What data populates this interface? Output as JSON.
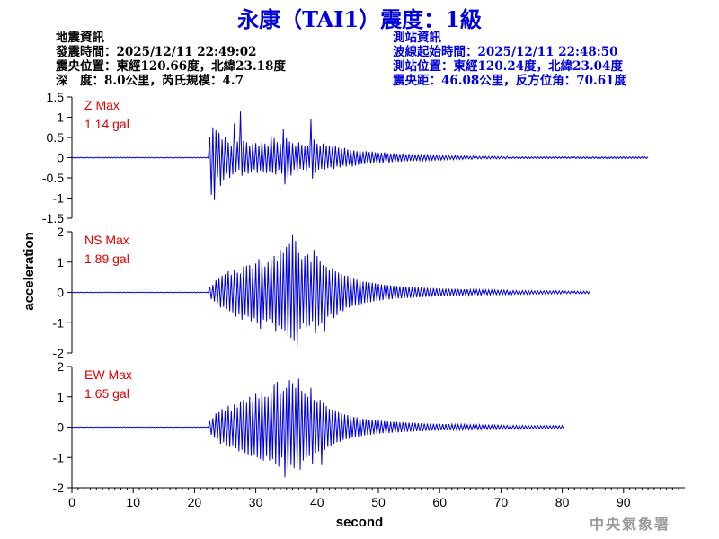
{
  "title": "永康（TAI1）震度：1級",
  "event_info": {
    "heading": "地震資訊",
    "time": "發震時間：2025/12/11 22:49:02",
    "epicenter": "震央位置：東經120.66度，北緯23.18度",
    "depth_magnitude": "深　度：8.0公里，芮氏規模：4.7"
  },
  "station_info": {
    "heading": "測站資訊",
    "wave_start": "波線起始時間：2025/12/11 22:48:50",
    "location": "測站位置：東經120.24度，北緯23.04度",
    "distance": "震央距：46.08公里，反方位角：70.61度"
  },
  "footer": "中央氣象署",
  "colors": {
    "title": "#0000dd",
    "trace": "#0000dd",
    "max_label": "#e00000",
    "axis": "#000000"
  },
  "chart_data": {
    "type": "line",
    "xlabel": "second",
    "ylabel": "acceleration",
    "xlim": [
      0,
      100
    ],
    "x_ticks": [
      0,
      10,
      20,
      30,
      40,
      50,
      60,
      70,
      80,
      90
    ],
    "grid": false,
    "sample_interval": 0.25,
    "panels": [
      {
        "name": "Z",
        "max_label": "Z Max",
        "max_value": "1.14 gal",
        "ylim": [
          -1.5,
          1.5
        ],
        "y_ticks": [
          1.5,
          1,
          0.5,
          0,
          -0.5,
          -1,
          -1.5
        ],
        "y_tick_labels": [
          "1.5",
          "1",
          "0.5",
          "0",
          "-0.5",
          "-1",
          "-1.5"
        ],
        "values": [
          0.01,
          -0.01,
          0.01,
          -0.01,
          0.01,
          -0.01,
          0.01,
          -0.01,
          0.01,
          -0.01,
          0.01,
          -0.01,
          0.01,
          -0.01,
          0.01,
          -0.01,
          0.01,
          -0.01,
          0.01,
          -0.01,
          0.01,
          -0.01,
          0.01,
          -0.01,
          0.01,
          -0.01,
          0.01,
          -0.01,
          0.01,
          -0.01,
          0.01,
          -0.01,
          0.01,
          -0.01,
          0.01,
          -0.01,
          0.01,
          -0.01,
          0.01,
          -0.01,
          0.01,
          -0.01,
          0.01,
          -0.01,
          0.01,
          -0.01,
          0.01,
          -0.01,
          0.01,
          -0.01,
          0.01,
          -0.01,
          0.01,
          -0.01,
          0.01,
          -0.01,
          0.01,
          -0.01,
          0.01,
          -0.01,
          0.01,
          -0.01,
          0.01,
          -0.01,
          0.01,
          -0.01,
          0.01,
          -0.01,
          0.01,
          -0.01,
          0.01,
          -0.01,
          0.01,
          -0.01,
          0.01,
          -0.01,
          0.01,
          -0.01,
          0.01,
          -0.01,
          0.01,
          -0.01,
          0.01,
          -0.01,
          0.01,
          -0.01,
          0.01,
          -0.01,
          0.01,
          -0.01,
          0.52,
          -0.92,
          0.75,
          -1.05,
          0.68,
          -0.48,
          0.62,
          -0.7,
          0.45,
          -0.55,
          0.5,
          -0.4,
          0.38,
          -0.5,
          0.3,
          -0.42,
          0.85,
          -0.35,
          0.4,
          -0.3,
          1.14,
          -0.45,
          0.42,
          -0.36,
          0.38,
          -0.4,
          0.3,
          -0.35,
          0.35,
          -0.3,
          0.36,
          -0.38,
          0.3,
          -0.32,
          0.4,
          -0.35,
          0.35,
          -0.38,
          0.3,
          -0.34,
          0.55,
          -0.38,
          0.48,
          -0.42,
          0.38,
          -0.3,
          0.35,
          -0.4,
          0.7,
          -0.66,
          0.48,
          -0.5,
          0.4,
          -0.44,
          0.36,
          -0.3,
          0.3,
          -0.35,
          0.38,
          -0.28,
          0.32,
          -0.3,
          0.28,
          -0.32,
          0.3,
          -0.25,
          0.95,
          -0.52,
          0.45,
          -0.38,
          0.35,
          -0.3,
          0.3,
          -0.28,
          0.35,
          -0.3,
          0.3,
          -0.26,
          0.28,
          -0.24,
          0.26,
          -0.28,
          0.3,
          -0.22,
          0.25,
          -0.24,
          0.22,
          -0.2,
          0.24,
          -0.22,
          0.2,
          -0.18,
          0.2,
          -0.22,
          0.18,
          -0.2,
          0.16,
          -0.18,
          0.18,
          -0.16,
          0.15,
          -0.16,
          0.16,
          -0.14,
          0.14,
          -0.15,
          0.15,
          -0.13,
          0.13,
          -0.14,
          0.12,
          -0.12,
          0.12,
          -0.13,
          0.13,
          -0.11,
          0.11,
          -0.12,
          0.1,
          -0.11,
          0.11,
          -0.1,
          0.1,
          -0.1,
          0.09,
          -0.1,
          0.1,
          -0.09,
          0.08,
          -0.09,
          0.09,
          -0.08,
          0.08,
          -0.08,
          0.07,
          -0.08,
          0.08,
          -0.07,
          0.07,
          -0.07,
          0.06,
          -0.07,
          0.07,
          -0.06,
          0.06,
          -0.06,
          0.06,
          -0.06,
          0.06,
          -0.05,
          0.05,
          -0.06,
          0.05,
          -0.05,
          0.05,
          -0.05,
          0.05,
          -0.04,
          0.04,
          -0.05,
          0.05,
          -0.04,
          0.04,
          -0.04,
          0.04,
          -0.04,
          0.04,
          -0.04,
          0.04,
          -0.03,
          0.03,
          -0.04,
          0.04,
          -0.03,
          0.03,
          -0.03,
          0.03,
          -0.03,
          0.03,
          -0.03,
          0.03,
          -0.03,
          0.03,
          -0.03,
          0.03,
          -0.03,
          0.03,
          -0.03,
          0.03,
          -0.03,
          0.03,
          -0.02,
          0.02,
          -0.03,
          0.03,
          -0.02,
          0.02,
          -0.02,
          0.02,
          -0.02,
          0.02,
          -0.02,
          0.02,
          -0.02,
          0.02,
          -0.02,
          0.02,
          -0.02,
          0.02,
          -0.02,
          0.02,
          -0.02,
          0.02,
          -0.02,
          0.02,
          -0.02,
          0.02,
          -0.02,
          0.02,
          -0.02,
          0.02,
          -0.02,
          0.02,
          -0.02,
          0.02,
          -0.02,
          0.02,
          -0.02,
          0.02,
          -0.02,
          0.02,
          -0.02,
          0.02,
          -0.02,
          0.02,
          -0.02,
          0.02,
          -0.02,
          0.02,
          -0.02,
          0.02,
          -0.02,
          0.02,
          -0.02,
          0.02,
          -0.02,
          0.02,
          -0.02,
          0.02,
          -0.02,
          0.02,
          -0.02,
          0.02,
          -0.02,
          0.02,
          -0.02,
          0.02,
          -0.02,
          0.02,
          -0.02,
          0.02,
          -0.02,
          0.02,
          -0.02,
          0.02,
          -0.02,
          0.02,
          -0.02,
          0.02,
          -0.02,
          0.02,
          -0.02,
          0.02,
          -0.02,
          0.02,
          -0.02,
          0.02,
          -0.02,
          0.02,
          -0.02,
          0.02,
          -0.02,
          0.02,
          -0.02,
          0.02,
          -0.02,
          0.02
        ]
      },
      {
        "name": "NS",
        "max_label": "NS Max",
        "max_value": "1.89 gal",
        "ylim": [
          -2,
          2
        ],
        "y_ticks": [
          2,
          1,
          0,
          -1,
          -2
        ],
        "y_tick_labels": [
          "2",
          "1",
          "0",
          "-1",
          "-2"
        ],
        "values": [
          0.01,
          -0.01,
          0.01,
          -0.01,
          0.01,
          -0.01,
          0.01,
          -0.01,
          0.01,
          -0.01,
          0.01,
          -0.01,
          0.01,
          -0.01,
          0.01,
          -0.01,
          0.01,
          -0.01,
          0.01,
          -0.01,
          0.01,
          -0.01,
          0.01,
          -0.01,
          0.01,
          -0.01,
          0.01,
          -0.01,
          0.01,
          -0.01,
          0.01,
          -0.01,
          0.01,
          -0.01,
          0.01,
          -0.01,
          0.01,
          -0.01,
          0.01,
          -0.01,
          0.01,
          -0.01,
          0.01,
          -0.01,
          0.01,
          -0.01,
          0.01,
          -0.01,
          0.01,
          -0.01,
          0.01,
          -0.01,
          0.01,
          -0.01,
          0.01,
          -0.01,
          0.01,
          -0.01,
          0.01,
          -0.01,
          0.01,
          -0.01,
          0.01,
          -0.01,
          0.01,
          -0.01,
          0.01,
          -0.01,
          0.01,
          -0.01,
          0.01,
          -0.01,
          0.01,
          -0.01,
          0.01,
          -0.01,
          0.01,
          -0.01,
          0.01,
          -0.01,
          0.01,
          -0.01,
          0.01,
          -0.01,
          0.01,
          -0.01,
          0.01,
          -0.01,
          0.01,
          -0.01,
          0.18,
          -0.22,
          0.25,
          -0.3,
          0.4,
          -0.35,
          0.45,
          -0.5,
          0.55,
          -0.48,
          0.6,
          -0.55,
          0.7,
          -0.62,
          0.58,
          -0.66,
          0.75,
          -0.8,
          0.65,
          -0.7,
          0.62,
          -0.9,
          0.85,
          -0.75,
          0.88,
          -0.8,
          0.9,
          -0.95,
          0.8,
          -0.85,
          0.95,
          -1.0,
          1.1,
          -1.2,
          1.0,
          -0.9,
          0.85,
          -0.95,
          1.0,
          -0.88,
          1.1,
          -1.0,
          1.2,
          -1.3,
          1.05,
          -1.1,
          1.4,
          -1.2,
          1.3,
          -1.25,
          1.5,
          -1.45,
          1.6,
          -1.5,
          1.89,
          -1.6,
          1.7,
          -1.8,
          1.3,
          -1.2,
          1.1,
          -1.0,
          1.2,
          -1.15,
          1.25,
          -1.1,
          1.0,
          -0.95,
          1.4,
          -1.35,
          1.2,
          -1.1,
          1.05,
          -1.0,
          0.9,
          -1.3,
          0.85,
          -0.8,
          0.75,
          -0.7,
          0.8,
          -0.85,
          0.7,
          -0.75,
          0.65,
          -0.6,
          0.6,
          -0.62,
          0.55,
          -0.5,
          0.55,
          -0.5,
          0.48,
          -0.45,
          0.45,
          -0.42,
          0.42,
          -0.4,
          0.4,
          -0.38,
          0.36,
          -0.35,
          0.35,
          -0.34,
          0.33,
          -0.32,
          0.32,
          -0.3,
          0.3,
          -0.28,
          0.28,
          -0.27,
          0.26,
          -0.25,
          0.25,
          -0.24,
          0.24,
          -0.23,
          0.23,
          -0.22,
          0.22,
          -0.21,
          0.21,
          -0.2,
          0.2,
          -0.2,
          0.19,
          -0.19,
          0.19,
          -0.18,
          0.18,
          -0.18,
          0.17,
          -0.17,
          0.17,
          -0.16,
          0.16,
          -0.16,
          0.16,
          -0.15,
          0.15,
          -0.15,
          0.15,
          -0.14,
          0.14,
          -0.14,
          0.14,
          -0.13,
          0.13,
          -0.13,
          0.13,
          -0.13,
          0.12,
          -0.12,
          0.12,
          -0.12,
          0.12,
          -0.11,
          0.11,
          -0.11,
          0.11,
          -0.11,
          0.11,
          -0.1,
          0.1,
          -0.1,
          0.1,
          -0.1,
          0.1,
          -0.1,
          0.09,
          -0.09,
          0.09,
          -0.09,
          0.09,
          -0.09,
          0.09,
          -0.09,
          0.08,
          -0.08,
          0.08,
          -0.08,
          0.08,
          -0.08,
          0.08,
          -0.08,
          0.08,
          -0.07,
          0.07,
          -0.07,
          0.07,
          -0.07,
          0.07,
          -0.07,
          0.07,
          -0.07,
          0.07,
          -0.07,
          0.06,
          -0.06,
          0.06,
          -0.06,
          0.06,
          -0.06,
          0.06,
          -0.06,
          0.06,
          -0.06,
          0.06,
          -0.06,
          0.06,
          -0.05,
          0.05,
          -0.05,
          0.05,
          -0.05,
          0.05,
          -0.05,
          0.05,
          -0.05,
          0.05,
          -0.05,
          0.05,
          -0.05,
          0.05,
          -0.05,
          0.05,
          -0.05,
          0.05,
          -0.05,
          0.05,
          -0.04,
          0.04,
          -0.04,
          0.04,
          -0.04,
          0.04,
          -0.04,
          0.04,
          -0.04,
          0.04,
          -0.04,
          0.04,
          -0.04,
          0.04,
          -0.04,
          0.04,
          -0.04,
          0.04
        ]
      },
      {
        "name": "EW",
        "max_label": "EW Max",
        "max_value": "1.65 gal",
        "ylim": [
          -2,
          2
        ],
        "y_ticks": [
          2,
          1,
          0,
          -1,
          -2
        ],
        "y_tick_labels": [
          "2",
          "1",
          "0",
          "-1",
          "-2"
        ],
        "values": [
          0.01,
          -0.01,
          0.01,
          -0.01,
          0.01,
          -0.01,
          0.01,
          -0.01,
          0.01,
          -0.01,
          0.01,
          -0.01,
          0.01,
          -0.01,
          0.01,
          -0.01,
          0.01,
          -0.01,
          0.01,
          -0.01,
          0.01,
          -0.01,
          0.01,
          -0.01,
          0.01,
          -0.01,
          0.01,
          -0.01,
          0.01,
          -0.01,
          0.01,
          -0.01,
          0.01,
          -0.01,
          0.01,
          -0.01,
          0.01,
          -0.01,
          0.01,
          -0.01,
          0.01,
          -0.01,
          0.01,
          -0.01,
          0.01,
          -0.01,
          0.01,
          -0.01,
          0.01,
          -0.01,
          0.01,
          -0.01,
          0.01,
          -0.01,
          0.01,
          -0.01,
          0.01,
          -0.01,
          0.01,
          -0.01,
          0.01,
          -0.01,
          0.01,
          -0.01,
          0.01,
          -0.01,
          0.01,
          -0.01,
          0.01,
          -0.01,
          0.01,
          -0.01,
          0.01,
          -0.01,
          0.01,
          -0.01,
          0.01,
          -0.01,
          0.01,
          -0.01,
          0.01,
          -0.01,
          0.01,
          -0.01,
          0.01,
          -0.01,
          0.01,
          -0.01,
          0.01,
          -0.01,
          0.2,
          -0.25,
          0.3,
          -0.35,
          0.45,
          -0.4,
          0.5,
          -0.55,
          0.6,
          -0.5,
          0.55,
          -0.6,
          0.7,
          -0.65,
          0.55,
          -0.6,
          0.75,
          -0.7,
          0.65,
          -0.8,
          0.85,
          -0.75,
          0.9,
          -0.85,
          0.8,
          -0.9,
          1.0,
          -0.95,
          0.85,
          -0.9,
          1.1,
          -1.0,
          0.95,
          -1.05,
          1.2,
          -1.1,
          1.0,
          -0.95,
          1.0,
          -1.1,
          1.15,
          -1.05,
          1.4,
          -1.2,
          1.5,
          -1.3,
          1.1,
          -1.0,
          1.2,
          -1.65,
          1.3,
          -1.4,
          1.55,
          -1.25,
          1.45,
          -1.35,
          1.3,
          -1.2,
          1.6,
          -1.4,
          1.2,
          -1.1,
          1.1,
          -1.0,
          1.0,
          -0.95,
          1.3,
          -1.2,
          0.9,
          -0.85,
          0.85,
          -0.8,
          0.9,
          -1.25,
          0.8,
          -0.75,
          0.7,
          -0.65,
          0.6,
          -0.62,
          0.58,
          -0.55,
          0.55,
          -0.5,
          0.5,
          -0.48,
          0.45,
          -0.42,
          0.42,
          -0.4,
          0.4,
          -0.38,
          0.36,
          -0.35,
          0.34,
          -0.33,
          0.32,
          -0.31,
          0.3,
          -0.29,
          0.28,
          -0.27,
          0.27,
          -0.26,
          0.25,
          -0.25,
          0.24,
          -0.23,
          0.23,
          -0.22,
          0.22,
          -0.21,
          0.21,
          -0.2,
          0.2,
          -0.2,
          0.19,
          -0.19,
          0.18,
          -0.18,
          0.18,
          -0.17,
          0.17,
          -0.17,
          0.16,
          -0.16,
          0.16,
          -0.15,
          0.15,
          -0.15,
          0.15,
          -0.14,
          0.14,
          -0.14,
          0.14,
          -0.13,
          0.13,
          -0.13,
          0.13,
          -0.13,
          0.12,
          -0.12,
          0.12,
          -0.12,
          0.12,
          -0.11,
          0.11,
          -0.11,
          0.11,
          -0.11,
          0.11,
          -0.1,
          0.1,
          -0.1,
          0.1,
          -0.1,
          0.1,
          -0.1,
          0.1,
          -0.09,
          0.09,
          -0.09,
          0.09,
          -0.09,
          0.09,
          -0.09,
          0.09,
          -0.09,
          0.08,
          -0.08,
          0.08,
          -0.08,
          0.08,
          -0.08,
          0.08,
          -0.08,
          0.08,
          -0.08,
          0.07,
          -0.07,
          0.07,
          -0.07,
          0.07,
          -0.07,
          0.07,
          -0.07,
          0.07,
          -0.07,
          0.07,
          -0.07,
          0.06,
          -0.06,
          0.06,
          -0.06,
          0.06,
          -0.06,
          0.06,
          -0.06,
          0.06,
          -0.06,
          0.06,
          -0.06,
          0.06,
          -0.06,
          0.06,
          -0.06,
          0.05,
          -0.05,
          0.05,
          -0.05,
          0.05,
          -0.05,
          0.05,
          -0.05,
          0.05,
          -0.05,
          0.05,
          -0.05,
          0.05,
          -0.05,
          0.05,
          -0.05,
          0.05,
          -0.05,
          0.05,
          -0.05,
          0.05,
          -0.05,
          0.05,
          -0.05,
          0.05,
          -0.05
        ]
      }
    ]
  }
}
